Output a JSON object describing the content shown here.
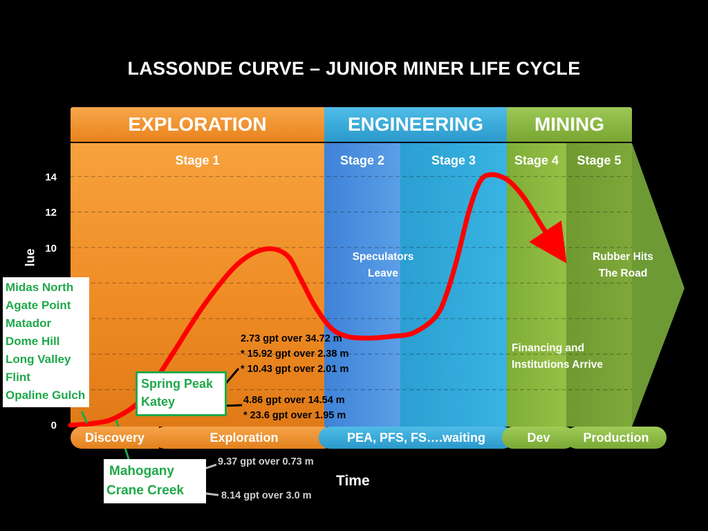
{
  "title": "LASSONDE CURVE – JUNIOR MINER LIFE CYCLE",
  "phases": [
    {
      "label": "EXPLORATION",
      "color": "#f0962c"
    },
    {
      "label": "ENGINEERING",
      "color": "#35a7d6"
    },
    {
      "label": "MINING",
      "color": "#86b23a"
    }
  ],
  "stages": [
    "Stage 1",
    "Stage 2",
    "Stage 3",
    "Stage 4",
    "Stage 5"
  ],
  "timeline": [
    "Discovery",
    "Exploration",
    "PEA, PFS, FS….waiting",
    "Dev",
    "Production"
  ],
  "xlabel": "Time",
  "ylabel_visible": "lue",
  "annotations": {
    "speculators": "Speculators Leave",
    "financing": "Financing and Institutions Arrive",
    "rubber": "Rubber Hits The Road"
  },
  "projects_list": [
    "Midas North",
    "Agate Point",
    "Matador",
    "Dome Hill",
    "Long Valley",
    "Flint",
    "Opaline Gulch"
  ],
  "spring_box": [
    "Spring  Peak",
    "Katey"
  ],
  "mahogany_box": [
    "Mahogany",
    "Crane Creek"
  ],
  "assays": {
    "spring": [
      "2.73 gpt over 34.72 m",
      "* 15.92 gpt over 2.38 m",
      "* 10.43 gpt over 2.01 m"
    ],
    "katey": [
      "4.86 gpt over 14.54 m",
      "* 23.6 gpt over 1.95 m"
    ],
    "mahogany": "9.37 gpt over 0.73 m",
    "crane": "8.14 gpt over 3.0 m"
  },
  "colors": {
    "curve": "#ff0000",
    "exploration": "#f0962c",
    "engineering": "#35a7d6",
    "mining": "#86b23a",
    "project_text": "#1fa84a"
  },
  "chart_data": {
    "type": "line",
    "title": "LASSONDE CURVE – JUNIOR MINER LIFE CYCLE",
    "xlabel": "Time",
    "ylabel": "Value",
    "yticks": [
      0,
      14,
      12,
      10
    ],
    "ylim": [
      0,
      15
    ],
    "grid": true,
    "series": [
      {
        "name": "",
        "x": [
          0,
          4,
          8,
          13,
          18,
          24,
          30,
          35,
          39,
          41.5,
          44,
          47,
          50,
          54,
          58,
          62,
          66,
          68,
          70,
          72,
          74,
          76,
          79,
          82,
          85,
          88
        ],
        "y": [
          0,
          0.1,
          0.4,
          1.5,
          3.8,
          6.7,
          9.0,
          9.9,
          9.6,
          8.3,
          6.8,
          5.5,
          5.0,
          4.9,
          5.0,
          5.2,
          6.1,
          7.4,
          9.5,
          12.0,
          13.7,
          14.1,
          13.8,
          12.8,
          11.3,
          9.9
        ]
      }
    ]
  }
}
